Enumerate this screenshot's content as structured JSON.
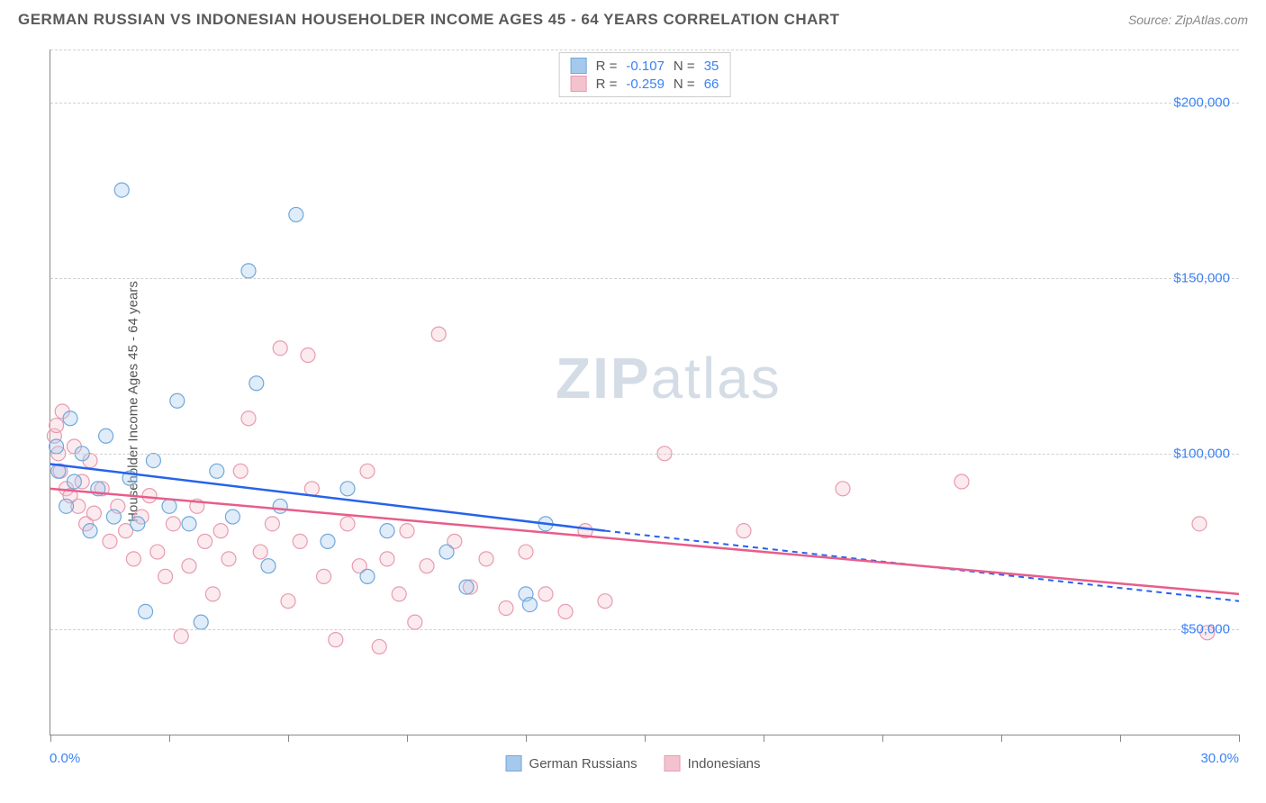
{
  "title": "GERMAN RUSSIAN VS INDONESIAN HOUSEHOLDER INCOME AGES 45 - 64 YEARS CORRELATION CHART",
  "source": "Source: ZipAtlas.com",
  "watermark_a": "ZIP",
  "watermark_b": "atlas",
  "y_axis_title": "Householder Income Ages 45 - 64 years",
  "chart": {
    "type": "scatter",
    "xlim": [
      0,
      30
    ],
    "ylim": [
      20000,
      215000
    ],
    "x_ticks": [
      0,
      3,
      6,
      9,
      12,
      15,
      18,
      21,
      24,
      27,
      30
    ],
    "x_min_label": "0.0%",
    "x_max_label": "30.0%",
    "y_gridlines": [
      50000,
      100000,
      150000,
      200000,
      215000
    ],
    "y_tick_labels": {
      "50000": "$50,000",
      "100000": "$100,000",
      "150000": "$150,000",
      "200000": "$200,000"
    },
    "grid_color": "#d0d0d0",
    "axis_color": "#888888",
    "label_color": "#3b82f6",
    "marker_radius": 8,
    "marker_opacity": 0.35,
    "series": [
      {
        "name": "German Russians",
        "fill": "#a6c8ec",
        "stroke": "#6fa8dc",
        "line_color": "#2563eb",
        "R": "-0.107",
        "N": "35",
        "points": [
          [
            0.2,
            95000
          ],
          [
            0.15,
            102000
          ],
          [
            0.4,
            85000
          ],
          [
            0.5,
            110000
          ],
          [
            0.6,
            92000
          ],
          [
            0.8,
            100000
          ],
          [
            1.0,
            78000
          ],
          [
            1.2,
            90000
          ],
          [
            1.4,
            105000
          ],
          [
            1.6,
            82000
          ],
          [
            1.8,
            175000
          ],
          [
            2.0,
            93000
          ],
          [
            2.2,
            80000
          ],
          [
            2.4,
            55000
          ],
          [
            2.6,
            98000
          ],
          [
            3.0,
            85000
          ],
          [
            3.2,
            115000
          ],
          [
            3.5,
            80000
          ],
          [
            3.8,
            52000
          ],
          [
            4.2,
            95000
          ],
          [
            4.6,
            82000
          ],
          [
            5.0,
            152000
          ],
          [
            5.2,
            120000
          ],
          [
            5.5,
            68000
          ],
          [
            5.8,
            85000
          ],
          [
            6.2,
            168000
          ],
          [
            7.0,
            75000
          ],
          [
            7.5,
            90000
          ],
          [
            8.0,
            65000
          ],
          [
            8.5,
            78000
          ],
          [
            10.0,
            72000
          ],
          [
            10.5,
            62000
          ],
          [
            12.0,
            60000
          ],
          [
            12.1,
            57000
          ],
          [
            12.5,
            80000
          ]
        ],
        "trend": {
          "x1": 0,
          "y1": 97000,
          "x2": 14,
          "y2": 78000,
          "x2_ext": 30,
          "y2_ext": 58000
        }
      },
      {
        "name": "Indonesians",
        "fill": "#f4c2cf",
        "stroke": "#e89bb0",
        "line_color": "#e85d8a",
        "R": "-0.259",
        "N": "66",
        "points": [
          [
            0.1,
            105000
          ],
          [
            0.15,
            108000
          ],
          [
            0.2,
            100000
          ],
          [
            0.25,
            95000
          ],
          [
            0.3,
            112000
          ],
          [
            0.4,
            90000
          ],
          [
            0.5,
            88000
          ],
          [
            0.6,
            102000
          ],
          [
            0.7,
            85000
          ],
          [
            0.8,
            92000
          ],
          [
            0.9,
            80000
          ],
          [
            1.0,
            98000
          ],
          [
            1.1,
            83000
          ],
          [
            1.3,
            90000
          ],
          [
            1.5,
            75000
          ],
          [
            1.7,
            85000
          ],
          [
            1.9,
            78000
          ],
          [
            2.1,
            70000
          ],
          [
            2.3,
            82000
          ],
          [
            2.5,
            88000
          ],
          [
            2.7,
            72000
          ],
          [
            2.9,
            65000
          ],
          [
            3.1,
            80000
          ],
          [
            3.3,
            48000
          ],
          [
            3.5,
            68000
          ],
          [
            3.7,
            85000
          ],
          [
            3.9,
            75000
          ],
          [
            4.1,
            60000
          ],
          [
            4.3,
            78000
          ],
          [
            4.5,
            70000
          ],
          [
            4.8,
            95000
          ],
          [
            5.0,
            110000
          ],
          [
            5.3,
            72000
          ],
          [
            5.6,
            80000
          ],
          [
            5.8,
            130000
          ],
          [
            6.0,
            58000
          ],
          [
            6.3,
            75000
          ],
          [
            6.6,
            90000
          ],
          [
            6.9,
            65000
          ],
          [
            7.2,
            47000
          ],
          [
            7.5,
            80000
          ],
          [
            7.8,
            68000
          ],
          [
            8.0,
            95000
          ],
          [
            8.3,
            45000
          ],
          [
            8.5,
            70000
          ],
          [
            8.8,
            60000
          ],
          [
            9.0,
            78000
          ],
          [
            9.2,
            52000
          ],
          [
            9.5,
            68000
          ],
          [
            9.8,
            134000
          ],
          [
            10.2,
            75000
          ],
          [
            10.6,
            62000
          ],
          [
            11.0,
            70000
          ],
          [
            11.5,
            56000
          ],
          [
            12.0,
            72000
          ],
          [
            12.5,
            60000
          ],
          [
            13.0,
            55000
          ],
          [
            13.5,
            78000
          ],
          [
            14.0,
            58000
          ],
          [
            15.5,
            100000
          ],
          [
            17.5,
            78000
          ],
          [
            20.0,
            90000
          ],
          [
            23.0,
            92000
          ],
          [
            29.0,
            80000
          ],
          [
            29.2,
            49000
          ],
          [
            6.5,
            128000
          ]
        ],
        "trend": {
          "x1": 0,
          "y1": 90000,
          "x2": 30,
          "y2": 60000
        }
      }
    ]
  },
  "top_legend": {
    "r_label": "R =",
    "n_label": "N ="
  },
  "bottom_legend": {
    "items": [
      {
        "label": "German Russians",
        "fill": "#a6c8ec",
        "stroke": "#6fa8dc"
      },
      {
        "label": "Indonesians",
        "fill": "#f4c2cf",
        "stroke": "#e89bb0"
      }
    ]
  }
}
